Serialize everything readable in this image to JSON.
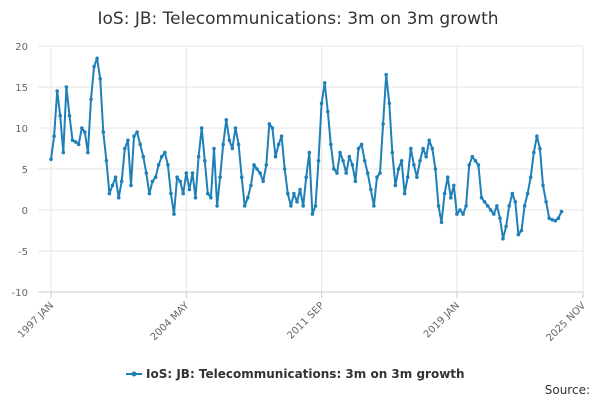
{
  "chart_data": {
    "type": "line",
    "title": "IoS: JB: Telecommunications: 3m on 3m growth",
    "xlabel": "",
    "ylabel": "",
    "ylim": [
      -10,
      20
    ],
    "y_ticks": [
      -10,
      -5,
      0,
      5,
      10,
      15,
      20
    ],
    "x_range": [
      "1997-01",
      "2025-11"
    ],
    "x_ticks": [
      {
        "label": "1997 JAN",
        "date": "1997-01"
      },
      {
        "label": "2004 MAY",
        "date": "2004-05"
      },
      {
        "label": "2011 SEP",
        "date": "2011-09"
      },
      {
        "label": "2019 JAN",
        "date": "2019-01"
      },
      {
        "label": "2025 NOV",
        "date": "2025-11"
      }
    ],
    "grid": true,
    "legend_position": "bottom",
    "series": [
      {
        "name": "IoS: JB: Telecommunications: 3m on 3m growth",
        "color": "#1f7fb8",
        "points": [
          [
            "1997-01",
            6.2
          ],
          [
            "1997-03",
            9.0
          ],
          [
            "1997-05",
            14.5
          ],
          [
            "1997-07",
            11.5
          ],
          [
            "1997-09",
            7.0
          ],
          [
            "1997-11",
            15.0
          ],
          [
            "1998-01",
            11.5
          ],
          [
            "1998-03",
            8.5
          ],
          [
            "1998-05",
            8.3
          ],
          [
            "1998-07",
            8.0
          ],
          [
            "1998-09",
            10.0
          ],
          [
            "1998-11",
            9.5
          ],
          [
            "1999-01",
            7.0
          ],
          [
            "1999-03",
            13.5
          ],
          [
            "1999-05",
            17.5
          ],
          [
            "1999-07",
            18.5
          ],
          [
            "1999-09",
            16.0
          ],
          [
            "1999-11",
            9.5
          ],
          [
            "2000-01",
            6.0
          ],
          [
            "2000-03",
            2.0
          ],
          [
            "2000-05",
            3.0
          ],
          [
            "2000-07",
            4.0
          ],
          [
            "2000-09",
            1.5
          ],
          [
            "2000-11",
            3.5
          ],
          [
            "2001-01",
            7.5
          ],
          [
            "2001-03",
            8.5
          ],
          [
            "2001-05",
            3.0
          ],
          [
            "2001-07",
            9.0
          ],
          [
            "2001-09",
            9.5
          ],
          [
            "2001-11",
            8.0
          ],
          [
            "2002-01",
            6.5
          ],
          [
            "2002-03",
            4.5
          ],
          [
            "2002-05",
            2.0
          ],
          [
            "2002-07",
            3.5
          ],
          [
            "2002-09",
            4.0
          ],
          [
            "2002-11",
            5.5
          ],
          [
            "2003-01",
            6.5
          ],
          [
            "2003-03",
            7.0
          ],
          [
            "2003-05",
            5.5
          ],
          [
            "2003-07",
            2.0
          ],
          [
            "2003-09",
            -0.5
          ],
          [
            "2003-11",
            4.0
          ],
          [
            "2004-01",
            3.5
          ],
          [
            "2004-03",
            2.0
          ],
          [
            "2004-05",
            4.5
          ],
          [
            "2004-07",
            2.5
          ],
          [
            "2004-09",
            4.5
          ],
          [
            "2004-11",
            1.5
          ],
          [
            "2005-01",
            6.5
          ],
          [
            "2005-03",
            10.0
          ],
          [
            "2005-05",
            6.0
          ],
          [
            "2005-07",
            2.0
          ],
          [
            "2005-09",
            1.5
          ],
          [
            "2005-11",
            7.5
          ],
          [
            "2006-01",
            0.5
          ],
          [
            "2006-03",
            4.0
          ],
          [
            "2006-05",
            8.0
          ],
          [
            "2006-07",
            11.0
          ],
          [
            "2006-09",
            8.5
          ],
          [
            "2006-11",
            7.5
          ],
          [
            "2007-01",
            10.0
          ],
          [
            "2007-03",
            8.0
          ],
          [
            "2007-05",
            4.0
          ],
          [
            "2007-07",
            0.5
          ],
          [
            "2007-09",
            1.5
          ],
          [
            "2007-11",
            3.0
          ],
          [
            "2008-01",
            5.5
          ],
          [
            "2008-03",
            5.0
          ],
          [
            "2008-05",
            4.5
          ],
          [
            "2008-07",
            3.5
          ],
          [
            "2008-09",
            5.5
          ],
          [
            "2008-11",
            10.5
          ],
          [
            "2009-01",
            10.0
          ],
          [
            "2009-03",
            6.5
          ],
          [
            "2009-05",
            8.0
          ],
          [
            "2009-07",
            9.0
          ],
          [
            "2009-09",
            5.0
          ],
          [
            "2009-11",
            2.0
          ],
          [
            "2010-01",
            0.5
          ],
          [
            "2010-03",
            2.0
          ],
          [
            "2010-05",
            1.0
          ],
          [
            "2010-07",
            2.5
          ],
          [
            "2010-09",
            0.5
          ],
          [
            "2010-11",
            4.0
          ],
          [
            "2011-01",
            7.0
          ],
          [
            "2011-03",
            -0.5
          ],
          [
            "2011-05",
            0.5
          ],
          [
            "2011-07",
            6.0
          ],
          [
            "2011-09",
            13.0
          ],
          [
            "2011-11",
            15.5
          ],
          [
            "2012-01",
            12.0
          ],
          [
            "2012-03",
            8.0
          ],
          [
            "2012-05",
            5.0
          ],
          [
            "2012-07",
            4.5
          ],
          [
            "2012-09",
            7.0
          ],
          [
            "2012-11",
            6.0
          ],
          [
            "2013-01",
            4.5
          ],
          [
            "2013-03",
            6.5
          ],
          [
            "2013-05",
            5.5
          ],
          [
            "2013-07",
            3.5
          ],
          [
            "2013-09",
            7.5
          ],
          [
            "2013-11",
            8.0
          ],
          [
            "2014-01",
            6.0
          ],
          [
            "2014-03",
            4.5
          ],
          [
            "2014-05",
            2.5
          ],
          [
            "2014-07",
            0.5
          ],
          [
            "2014-09",
            4.0
          ],
          [
            "2014-11",
            4.5
          ],
          [
            "2015-01",
            10.5
          ],
          [
            "2015-03",
            16.5
          ],
          [
            "2015-05",
            13.0
          ],
          [
            "2015-07",
            7.0
          ],
          [
            "2015-09",
            3.0
          ],
          [
            "2015-11",
            5.0
          ],
          [
            "2016-01",
            6.0
          ],
          [
            "2016-03",
            2.0
          ],
          [
            "2016-05",
            4.0
          ],
          [
            "2016-07",
            7.5
          ],
          [
            "2016-09",
            5.5
          ],
          [
            "2016-11",
            4.0
          ],
          [
            "2017-01",
            6.0
          ],
          [
            "2017-03",
            7.5
          ],
          [
            "2017-05",
            6.5
          ],
          [
            "2017-07",
            8.5
          ],
          [
            "2017-09",
            7.5
          ],
          [
            "2017-11",
            5.0
          ],
          [
            "2018-01",
            0.5
          ],
          [
            "2018-03",
            -1.5
          ],
          [
            "2018-05",
            2.0
          ],
          [
            "2018-07",
            4.0
          ],
          [
            "2018-09",
            1.5
          ],
          [
            "2018-11",
            3.0
          ],
          [
            "2019-01",
            -0.5
          ],
          [
            "2019-03",
            0.0
          ],
          [
            "2019-05",
            -0.5
          ],
          [
            "2019-07",
            0.5
          ],
          [
            "2019-09",
            5.5
          ],
          [
            "2019-11",
            6.5
          ],
          [
            "2020-01",
            6.0
          ],
          [
            "2020-03",
            5.5
          ],
          [
            "2020-05",
            1.5
          ],
          [
            "2020-07",
            1.0
          ],
          [
            "2020-09",
            0.5
          ],
          [
            "2020-11",
            0.0
          ],
          [
            "2021-01",
            -0.5
          ],
          [
            "2021-03",
            0.5
          ],
          [
            "2021-05",
            -1.0
          ],
          [
            "2021-07",
            -3.5
          ],
          [
            "2021-09",
            -2.0
          ],
          [
            "2021-11",
            0.5
          ],
          [
            "2022-01",
            2.0
          ],
          [
            "2022-03",
            1.0
          ],
          [
            "2022-05",
            -3.0
          ],
          [
            "2022-07",
            -2.5
          ],
          [
            "2022-09",
            0.5
          ],
          [
            "2022-11",
            2.0
          ],
          [
            "2023-01",
            4.0
          ],
          [
            "2023-03",
            7.0
          ],
          [
            "2023-05",
            9.0
          ],
          [
            "2023-07",
            7.5
          ],
          [
            "2023-09",
            3.0
          ],
          [
            "2023-11",
            1.0
          ],
          [
            "2024-01",
            -1.0
          ],
          [
            "2024-03",
            -1.2
          ],
          [
            "2024-05",
            -1.3
          ],
          [
            "2024-07",
            -1.0
          ],
          [
            "2024-09",
            -0.2
          ]
        ]
      }
    ],
    "source_label": "Source:"
  }
}
